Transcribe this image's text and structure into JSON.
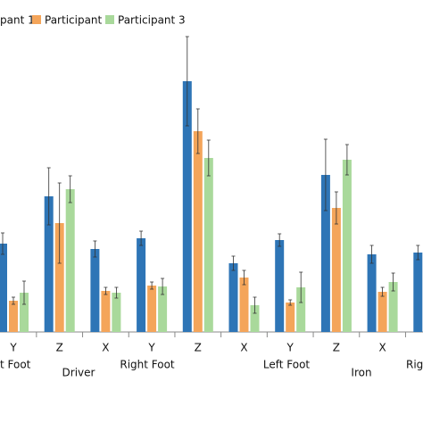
{
  "chart_data": {
    "type": "bar",
    "categories": [
      "Y",
      "Z",
      "X",
      "Y",
      "Z",
      "X",
      "Y",
      "Z",
      "X",
      null
    ],
    "groups": [
      "t Foot",
      "Driver",
      "Right Foot",
      "Left Foot",
      "Iron",
      "Righ"
    ],
    "series": [
      {
        "name": "pant 1",
        "color": "#2e75b6",
        "values": [
          99,
          152,
          93,
          105,
          281,
          77,
          103,
          176,
          87,
          89
        ],
        "errors": [
          12,
          32,
          9,
          8,
          50,
          8,
          7,
          40,
          10,
          8
        ]
      },
      {
        "name": "Participant 2",
        "color": "#f4a55a",
        "values": [
          35,
          122,
          46,
          52,
          225,
          61,
          33,
          139,
          45,
          null
        ],
        "errors": [
          4,
          45,
          4,
          4,
          25,
          8,
          3,
          18,
          5,
          null
        ]
      },
      {
        "name": "Participant 3",
        "color": "#a9d99b",
        "values": [
          44,
          160,
          44,
          51,
          195,
          30,
          50,
          193,
          56,
          null
        ],
        "errors": [
          13,
          15,
          6,
          9,
          20,
          9,
          17,
          17,
          10,
          null
        ]
      }
    ],
    "ylim": [
      0,
      372
    ]
  }
}
